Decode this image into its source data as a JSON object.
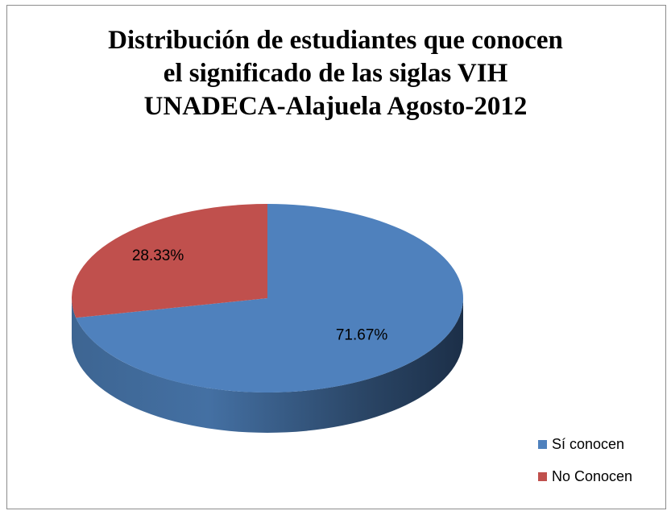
{
  "chart_data": {
    "type": "pie",
    "style": "3d",
    "title": [
      "Distribución de estudiantes que conocen",
      "el significado de las siglas VIH",
      "UNADECA-Alajuela Agosto-2012"
    ],
    "categories": [
      "Sí conocen",
      "No Conocen"
    ],
    "values": [
      71.67,
      28.33
    ],
    "data_labels": [
      "71.67%",
      "28.33%"
    ],
    "colors": [
      "#4f81bd",
      "#c0504d"
    ],
    "legend": "bottom-right"
  }
}
